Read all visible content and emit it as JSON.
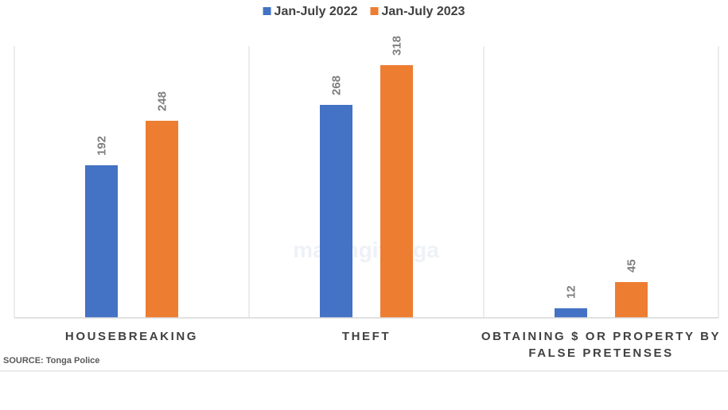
{
  "watermark": "matangitonga",
  "source_note": "SOURCE: Tonga Police",
  "chart_data": {
    "type": "bar",
    "categories": [
      [
        "HOUSEBREAKING"
      ],
      [
        "THEFT"
      ],
      [
        "OBTAINING $ OR PROPERTY BY",
        "FALSE PRETENSES"
      ]
    ],
    "series": [
      {
        "name": "Jan-July 2022",
        "color": "#4472c4",
        "values": [
          192,
          268,
          12
        ]
      },
      {
        "name": "Jan-July 2023",
        "color": "#ed7d31",
        "values": [
          248,
          318,
          45
        ]
      }
    ],
    "title": "",
    "xlabel": "",
    "ylabel": "",
    "ylim": [
      0,
      350
    ],
    "grid": false,
    "legend": "top-center",
    "data_labels": true,
    "colors": {
      "axis": "#d9d9d9",
      "value_label": "#7f7f7f",
      "category_label": "#404040"
    }
  }
}
